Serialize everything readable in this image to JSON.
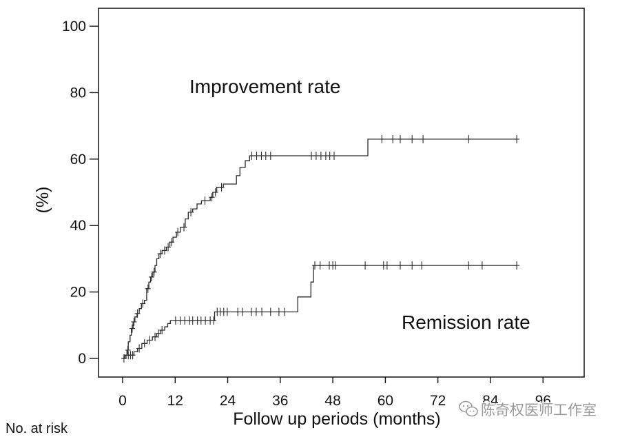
{
  "chart_data": {
    "type": "line",
    "step": true,
    "title": "",
    "xlabel": "Follow up periods (months)",
    "ylabel": "(%)",
    "x_ticks": [
      0,
      12,
      24,
      36,
      48,
      60,
      72,
      84,
      96
    ],
    "y_ticks": [
      0,
      20,
      40,
      60,
      80,
      100
    ],
    "xlim": [
      -5.5,
      105.4
    ],
    "ylim": [
      -5.6,
      105.4
    ],
    "grid": false,
    "legend": "none (series labeled directly on plot)",
    "series": [
      {
        "name": "Improvement rate",
        "color": "#2a2a2a",
        "steps": [
          [
            0,
            0
          ],
          [
            0.5,
            1
          ],
          [
            1,
            2.5
          ],
          [
            1.3,
            5
          ],
          [
            1.7,
            7
          ],
          [
            2,
            9
          ],
          [
            2.4,
            11
          ],
          [
            2.8,
            12.5
          ],
          [
            3.3,
            13.5
          ],
          [
            3.8,
            15
          ],
          [
            4.3,
            16.5
          ],
          [
            5,
            17.5
          ],
          [
            5.5,
            21
          ],
          [
            6,
            23
          ],
          [
            6.4,
            24.5
          ],
          [
            6.9,
            26
          ],
          [
            7.4,
            28
          ],
          [
            7.8,
            30
          ],
          [
            8.3,
            31.5
          ],
          [
            9,
            32.5
          ],
          [
            10,
            33.5
          ],
          [
            10.8,
            35
          ],
          [
            11.5,
            36.5
          ],
          [
            12.3,
            38
          ],
          [
            13.2,
            39.5
          ],
          [
            14.3,
            42
          ],
          [
            15,
            44
          ],
          [
            16,
            45
          ],
          [
            17,
            46.5
          ],
          [
            18,
            47.5
          ],
          [
            20,
            48.5
          ],
          [
            20.6,
            50
          ],
          [
            21.5,
            51.5
          ],
          [
            23,
            52.5
          ],
          [
            26,
            55
          ],
          [
            26.8,
            57.5
          ],
          [
            28,
            59.5
          ],
          [
            29,
            61
          ],
          [
            56,
            66
          ]
        ],
        "end": 90,
        "censored": [
          1.2,
          2.2,
          2.6,
          3.4,
          4.6,
          5.8,
          6.6,
          7.2,
          8.6,
          9.6,
          10.4,
          11.2,
          12.6,
          14,
          15.6,
          18.8,
          20.4,
          21.2,
          22.6,
          29.5,
          30.6,
          31.7,
          32.7,
          33.8,
          43.1,
          44.2,
          45.3,
          46.4,
          47.3,
          48.3,
          59.2,
          61.7,
          63.4,
          66.1,
          68.6,
          79,
          90
        ]
      },
      {
        "name": "Remission rate",
        "color": "#2a2a2a",
        "steps": [
          [
            0,
            0
          ],
          [
            0.8,
            1
          ],
          [
            2.6,
            2
          ],
          [
            3.4,
            3
          ],
          [
            4.4,
            4.5
          ],
          [
            5.6,
            5.5
          ],
          [
            6.8,
            6.5
          ],
          [
            7.8,
            7.5
          ],
          [
            8.6,
            8.5
          ],
          [
            9.6,
            9.5
          ],
          [
            10.3,
            10.5
          ],
          [
            10.9,
            11.4
          ],
          [
            21,
            14
          ],
          [
            40,
            18.5
          ],
          [
            43,
            23
          ],
          [
            43.6,
            28
          ]
        ],
        "end": 90,
        "censored": [
          0.3,
          1.3,
          1.8,
          2.3,
          3.8,
          5,
          6.2,
          7.4,
          8.2,
          9,
          12.1,
          13.2,
          14.2,
          15.3,
          16,
          17.1,
          17.9,
          18.9,
          20,
          20.8,
          21.6,
          22.3,
          23.1,
          23.9,
          26.3,
          27.4,
          29.4,
          30.5,
          31.8,
          33.8,
          35.7,
          37,
          43.9,
          45.1,
          47.2,
          48,
          48.6,
          55.4,
          59.6,
          60.4,
          63.4,
          66.1,
          68.3,
          79,
          82.1,
          90
        ]
      }
    ]
  },
  "risk_table": {
    "label": "No. at risk"
  },
  "watermark": {
    "icon": "wechat-icon",
    "text": "陈奇权医师工作室"
  }
}
